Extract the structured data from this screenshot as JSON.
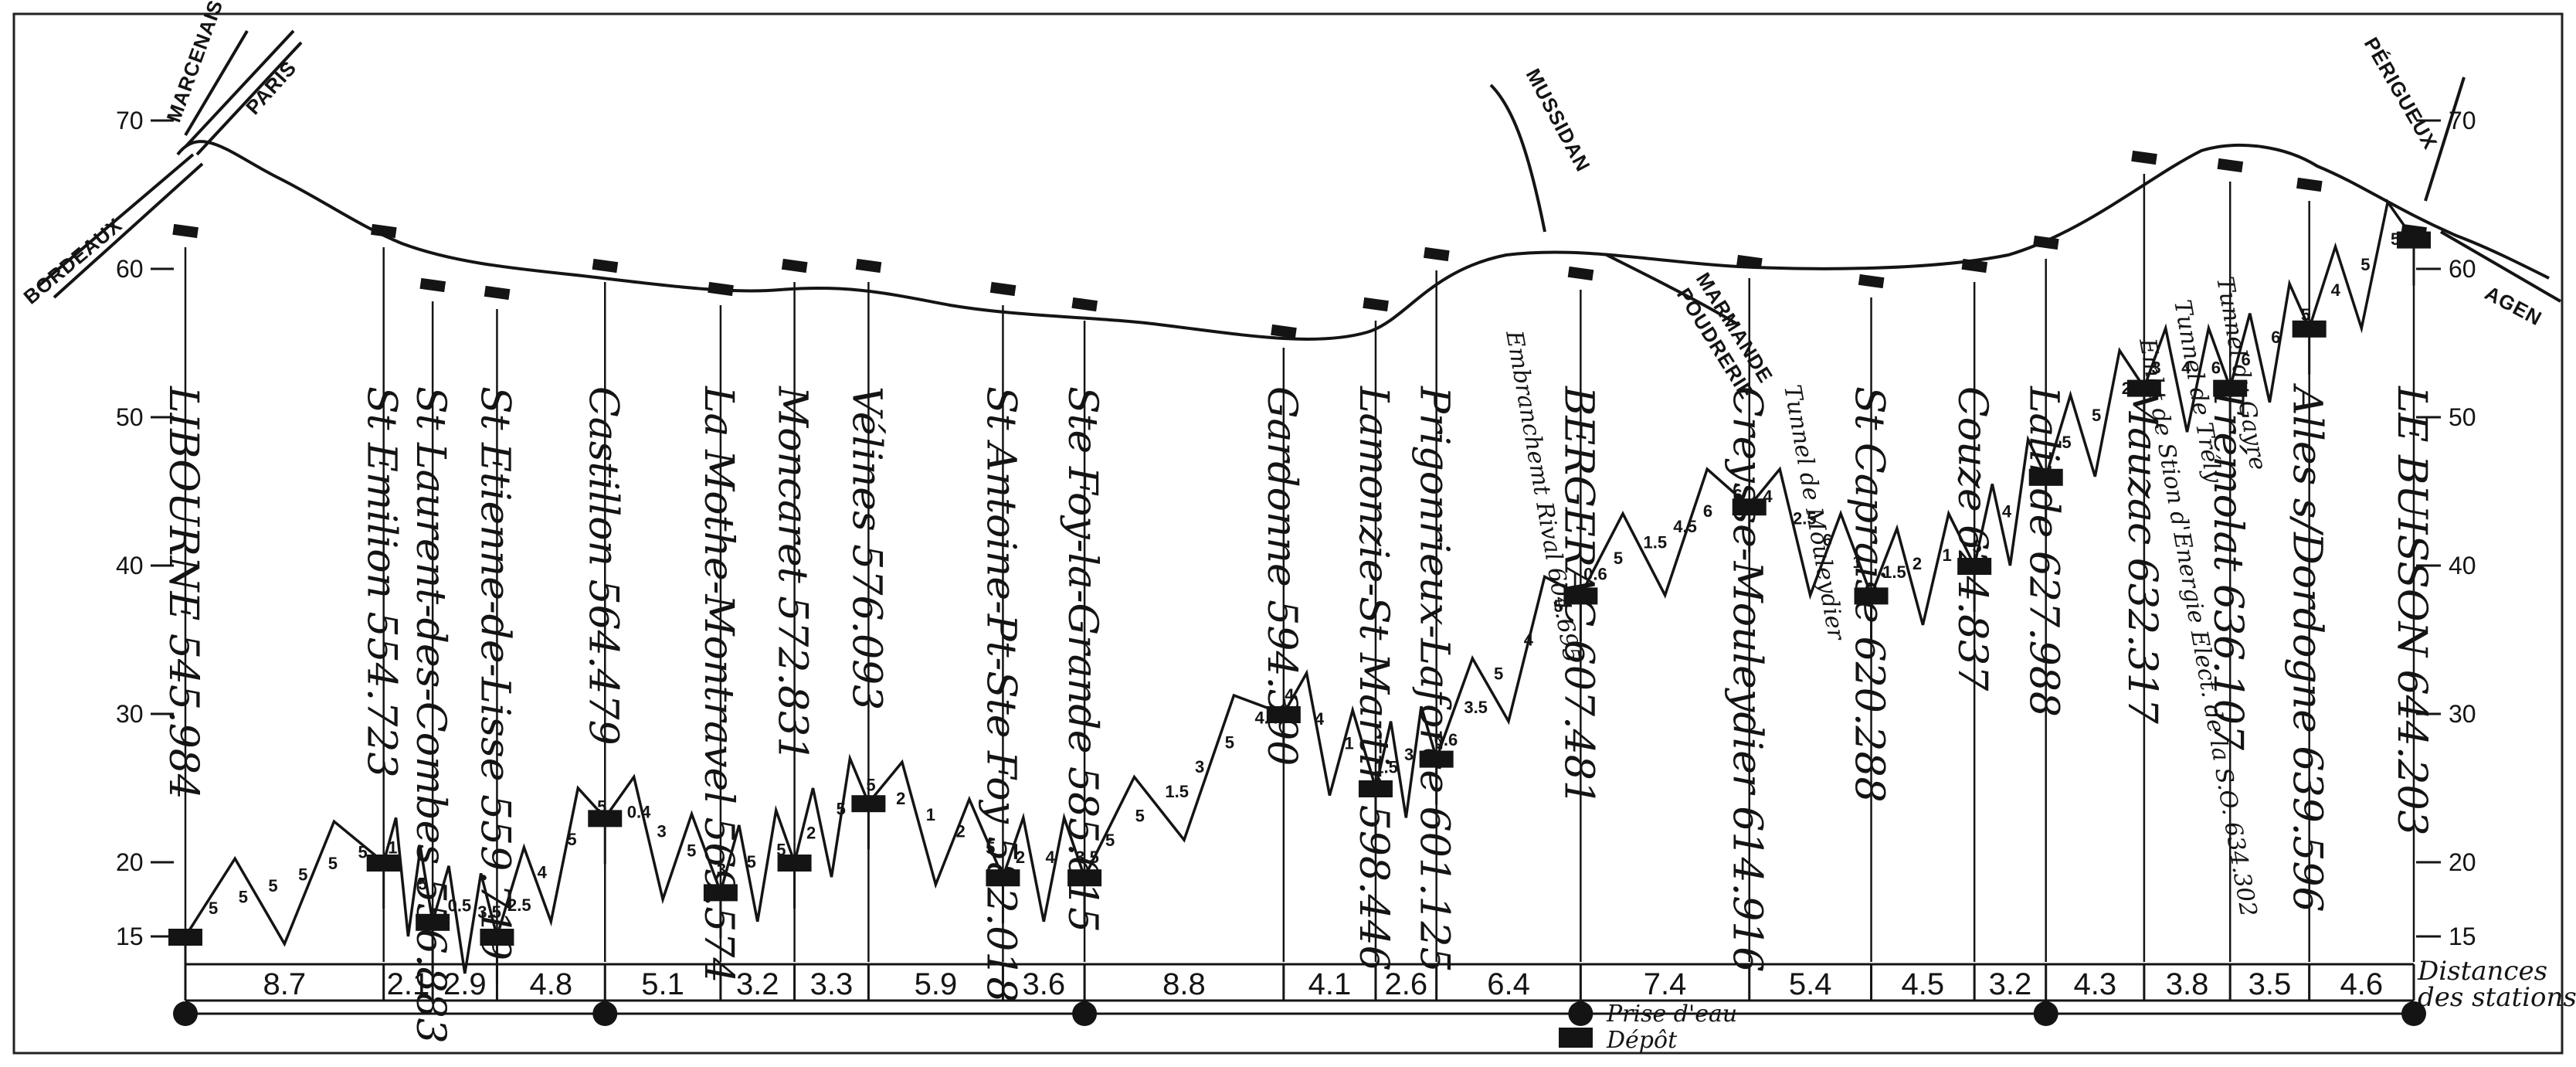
{
  "chart_data": {
    "type": "line",
    "ylim": [
      15,
      70
    ],
    "yticks": [
      "15",
      "20",
      "30",
      "40",
      "50",
      "60",
      "70"
    ],
    "stations": [
      {
        "name": "LIBOURNE",
        "km": "545.984",
        "alt": 15
      },
      {
        "name": "St Emilion",
        "km": "554.723",
        "alt": 20
      },
      {
        "name": "St Laurent-des-Combes",
        "km": "556.883",
        "alt": 16
      },
      {
        "name": "St Etienne-de-Lisse",
        "km": "559.719",
        "alt": 15
      },
      {
        "name": "Castillon",
        "km": "564.479",
        "alt": 23
      },
      {
        "name": "La Mothe-Montravel",
        "km": "569.574",
        "alt": 18
      },
      {
        "name": "Moncaret",
        "km": "572.831",
        "alt": 20
      },
      {
        "name": "Vélines",
        "km": "576.093",
        "alt": 24
      },
      {
        "name": "St Antoine-Pt-Ste Foy",
        "km": "582.018",
        "alt": 19
      },
      {
        "name": "Ste Foy-la-Grande",
        "km": "585.615",
        "alt": 19
      },
      {
        "name": "Gardonne",
        "km": "594.390",
        "alt": 30
      },
      {
        "name": "Lamonzie-St Martin",
        "km": "598.446",
        "alt": 25
      },
      {
        "name": "Prigonrieux-Laforce",
        "km": "601.125",
        "alt": 27
      },
      {
        "name": "BERGERAC",
        "km": "607.481",
        "alt": 38
      },
      {
        "name": "Creysse-Mouleydier",
        "km": "614.916",
        "alt": 44
      },
      {
        "name": "St Capraise",
        "km": "620.288",
        "alt": 38
      },
      {
        "name": "Couze",
        "km": "624.837",
        "alt": 40
      },
      {
        "name": "Lalinde",
        "km": "627.988",
        "alt": 46
      },
      {
        "name": "Mauzac",
        "km": "632.317",
        "alt": 52
      },
      {
        "name": "Trémolat",
        "km": "636.107",
        "alt": 52
      },
      {
        "name": "Alles s/Dordogne",
        "km": "639.596",
        "alt": 56
      },
      {
        "name": "LE BUISSON",
        "km": "644.203",
        "alt": 62
      }
    ],
    "extra_points": [
      {
        "name": "Embranchemt Rival",
        "km": "604.695"
      },
      {
        "name": "Tunnel de Mouleydier",
        "km": ""
      },
      {
        "name": "Tunnel du Gayre",
        "km": ""
      },
      {
        "name": "Tunnel de Trély",
        "km": ""
      },
      {
        "name": "Embt de Stion d'Energie Elect. de la S.O.",
        "km": "634.302"
      }
    ],
    "distances": [
      "8.7",
      "2.1",
      "2.9",
      "4.8",
      "5.1",
      "3.2",
      "3.3",
      "5.9",
      "3.6",
      "8.8",
      "4.1",
      "2.6",
      "6.4",
      "7.4",
      "5.4",
      "4.5",
      "3.2",
      "4.3",
      "3.8",
      "3.5",
      "4.6"
    ],
    "grade_labels": [
      "5",
      "5",
      "5",
      "5",
      "5",
      "5",
      "1",
      "5",
      "0.5",
      "3.5",
      "2.5",
      "4",
      "5",
      "5",
      "0.4",
      "3",
      "5",
      "3",
      "5",
      "5",
      "2",
      "5",
      "5",
      "2",
      "1",
      "2",
      "5",
      "2",
      "4",
      "3.5",
      "5",
      "5",
      "1.5",
      "3",
      "5",
      "4.4",
      "4",
      "4",
      "1",
      "1.5",
      "3",
      "0.6",
      "3.5",
      "5",
      "4",
      "5",
      "0.6",
      "5",
      "1.5",
      "4.5",
      "6",
      "6",
      "4",
      "2.5",
      "6",
      "1",
      "1.5",
      "2",
      "1",
      "5",
      "4",
      "6",
      "5",
      "5",
      "2",
      "3",
      "4",
      "6",
      "6",
      "6",
      "5",
      "4",
      "5",
      "5"
    ]
  },
  "labels": {
    "routes": {
      "marcenais": "MARCENAIS",
      "paris": "PARIS",
      "bordeaux": "BORDEAUX",
      "mussidan": "MUSSIDAN",
      "marmande": "MARMANDE",
      "poudrerie": "POUDRERIE",
      "perigueux": "PÉRIGUEUX",
      "agen": "AGEN"
    },
    "distances_caption_line1": "Distances",
    "distances_caption_line2": "des stations",
    "legend_water": "Prise d'eau",
    "legend_depot": "Dépôt"
  },
  "colors": {
    "ink": "#141414",
    "paper": "#ffffff"
  }
}
